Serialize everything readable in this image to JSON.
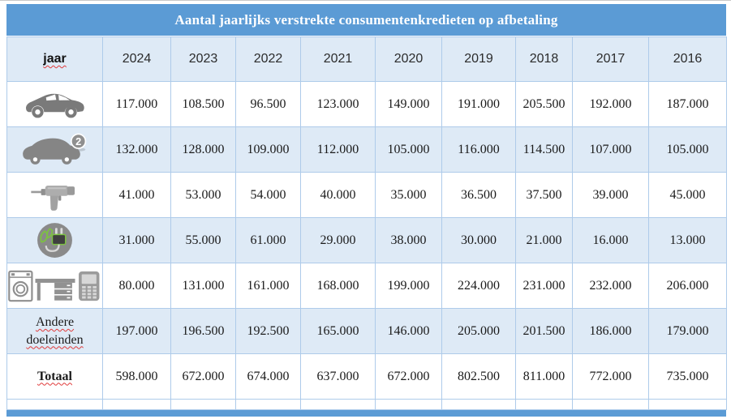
{
  "title": "Aantal jaarlijks verstrekte consumentenkredieten op afbetaling",
  "header": {
    "row_label": "jaar",
    "years": [
      "2024",
      "2023",
      "2022",
      "2021",
      "2020",
      "2019",
      "2018",
      "2017",
      "2016"
    ]
  },
  "rows": [
    {
      "icon": "new-car-icon",
      "label": "",
      "bold": false,
      "squiggle": false,
      "values": [
        "117.000",
        "108.500",
        "96.500",
        "123.000",
        "149.000",
        "191.000",
        "205.500",
        "192.000",
        "187.000"
      ]
    },
    {
      "icon": "used-car-icon",
      "label": "",
      "bold": false,
      "squiggle": false,
      "values": [
        "132.000",
        "128.000",
        "109.000",
        "112.000",
        "105.000",
        "116.000",
        "114.500",
        "107.000",
        "105.000"
      ]
    },
    {
      "icon": "drill-icon",
      "label": "",
      "bold": false,
      "squiggle": false,
      "values": [
        "41.000",
        "53.000",
        "54.000",
        "40.000",
        "35.000",
        "36.500",
        "37.500",
        "39.000",
        "45.000"
      ]
    },
    {
      "icon": "green-energy-plug-icon",
      "label": "",
      "bold": false,
      "squiggle": false,
      "values": [
        "31.000",
        "55.000",
        "61.000",
        "29.000",
        "38.000",
        "30.000",
        "21.000",
        "16.000",
        "13.000"
      ]
    },
    {
      "icon": "appliances-icon",
      "label": "",
      "bold": false,
      "squiggle": false,
      "values": [
        "80.000",
        "131.000",
        "161.000",
        "168.000",
        "199.000",
        "224.000",
        "231.000",
        "232.000",
        "206.000"
      ]
    },
    {
      "icon": null,
      "label": "Andere doeleinden",
      "bold": false,
      "squiggle": true,
      "values": [
        "197.000",
        "196.500",
        "192.500",
        "165.000",
        "146.000",
        "205.000",
        "201.500",
        "186.000",
        "179.000"
      ]
    },
    {
      "icon": null,
      "label": "Totaal",
      "bold": true,
      "squiggle": true,
      "values": [
        "598.000",
        "672.000",
        "674.000",
        "637.000",
        "672.000",
        "802.500",
        "811.000",
        "772.000",
        "735.000"
      ]
    }
  ],
  "icons": {
    "used_car_badge": "2"
  },
  "colors": {
    "accent": "#5B9BD5",
    "band": "#DEEAF6",
    "border": "#AECBEA",
    "icon_gray": "#8A8A8A",
    "leaf_green": "#7CC142",
    "squiggle_red": "#E03A3A"
  }
}
